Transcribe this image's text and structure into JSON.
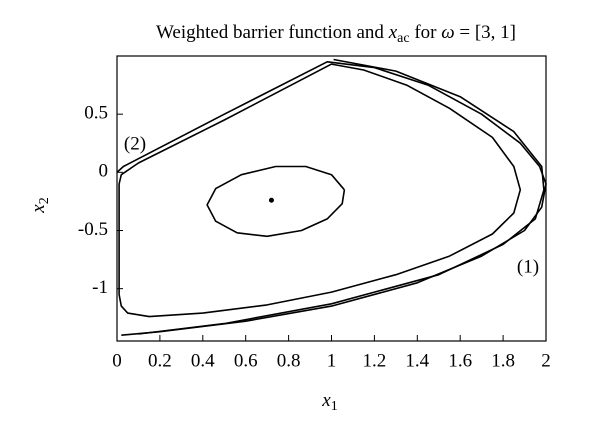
{
  "chart_data": {
    "type": "line",
    "title": [
      "Weighted barrier function and ",
      "x",
      "ac",
      " for ",
      "ω",
      " = [3, 1]"
    ],
    "xlabel": [
      "x",
      "1"
    ],
    "ylabel": [
      "x",
      "2"
    ],
    "annotations": [
      "(1)",
      "(2)"
    ],
    "xlim": [
      0,
      2
    ],
    "ylim": [
      -1.45,
      1.0
    ],
    "xticks": [
      0,
      0.2,
      0.4,
      0.6,
      0.8,
      1,
      1.2,
      1.4,
      1.6,
      1.8,
      2
    ],
    "yticks": [
      -1,
      -0.5,
      0,
      0.5
    ],
    "series": [
      {
        "color": "#000000",
        "marker": false,
        "x": [
          1.06,
          1.0,
          0.88,
          0.74,
          0.58,
          0.46,
          0.42,
          0.46,
          0.56,
          0.7,
          0.86,
          0.98,
          1.05,
          1.06
        ],
        "values": [
          -0.15,
          -0.02,
          0.05,
          0.05,
          -0.02,
          -0.14,
          -0.28,
          -0.42,
          -0.52,
          -0.55,
          -0.5,
          -0.4,
          -0.27,
          -0.15
        ]
      },
      {
        "color": "#000000",
        "marker": false,
        "x": [
          0.01,
          0.02,
          0.05,
          0.15,
          0.4,
          0.7,
          1.0,
          1.3,
          1.55,
          1.75,
          1.85,
          1.88,
          1.85,
          1.75,
          1.55,
          1.35,
          1.15,
          1.0,
          0.5,
          0.1,
          0.02,
          0.01,
          0.01,
          0.01
        ],
        "values": [
          -1.05,
          -1.15,
          -1.21,
          -1.24,
          -1.21,
          -1.14,
          -1.03,
          -0.88,
          -0.72,
          -0.53,
          -0.35,
          -0.15,
          0.05,
          0.3,
          0.55,
          0.75,
          0.88,
          0.93,
          0.45,
          0.08,
          -0.02,
          -0.1,
          -0.5,
          -1.05
        ]
      },
      {
        "color": "#000000",
        "marker": false,
        "x": [
          0,
          0.03,
          0.5,
          0.98,
          1.2,
          1.45,
          1.7,
          1.88,
          1.97,
          2.0,
          1.98,
          1.9,
          1.7,
          1.4,
          1.0,
          0.6,
          0.2,
          0.02
        ],
        "values": [
          0,
          0.05,
          0.5,
          0.95,
          0.9,
          0.75,
          0.5,
          0.25,
          0.05,
          -0.1,
          -0.3,
          -0.5,
          -0.72,
          -0.95,
          -1.15,
          -1.28,
          -1.37,
          -1.4
        ]
      },
      {
        "color": "#000000",
        "marker": false,
        "x": [
          1.01,
          1.3,
          1.6,
          1.85,
          1.98,
          1.99,
          1.95,
          1.8,
          1.5,
          1.0,
          0.5,
          0.1
        ],
        "values": [
          0.97,
          0.87,
          0.65,
          0.35,
          0.05,
          -0.15,
          -0.4,
          -0.62,
          -0.88,
          -1.13,
          -1.3,
          -1.39
        ]
      },
      {
        "color": "#000000",
        "marker": true,
        "x": [
          0.72
        ],
        "values": [
          -0.24
        ]
      }
    ]
  }
}
